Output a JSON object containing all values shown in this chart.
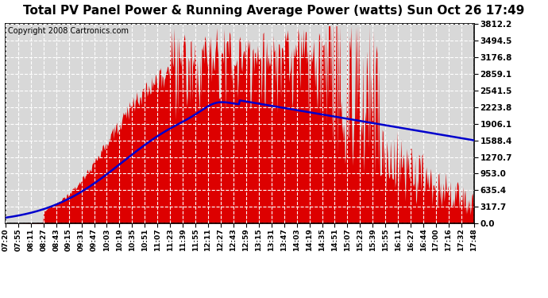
{
  "title": "Total PV Panel Power & Running Average Power (watts) Sun Oct 26 17:49",
  "copyright": "Copyright 2008 Cartronics.com",
  "y_max": 3812.2,
  "y_min": 0.0,
  "y_ticks": [
    0.0,
    317.7,
    635.4,
    953.0,
    1270.7,
    1588.4,
    1906.1,
    2223.8,
    2541.5,
    2859.1,
    3176.8,
    3494.5,
    3812.2
  ],
  "background_color": "#ffffff",
  "plot_bg_color": "#d8d8d8",
  "red_color": "#dd0000",
  "blue_color": "#0000cc",
  "title_fontsize": 11,
  "copyright_fontsize": 7,
  "grid_color": "#ffffff",
  "x_labels": [
    "07:20",
    "07:55",
    "08:11",
    "08:27",
    "08:43",
    "09:15",
    "09:31",
    "09:47",
    "10:03",
    "10:19",
    "10:35",
    "10:51",
    "11:07",
    "11:23",
    "11:39",
    "11:55",
    "12:11",
    "12:27",
    "12:43",
    "12:59",
    "13:15",
    "13:31",
    "13:47",
    "14:03",
    "14:19",
    "14:35",
    "14:51",
    "15:07",
    "15:23",
    "15:39",
    "15:55",
    "16:11",
    "16:27",
    "16:44",
    "17:00",
    "17:16",
    "17:32",
    "17:48"
  ]
}
